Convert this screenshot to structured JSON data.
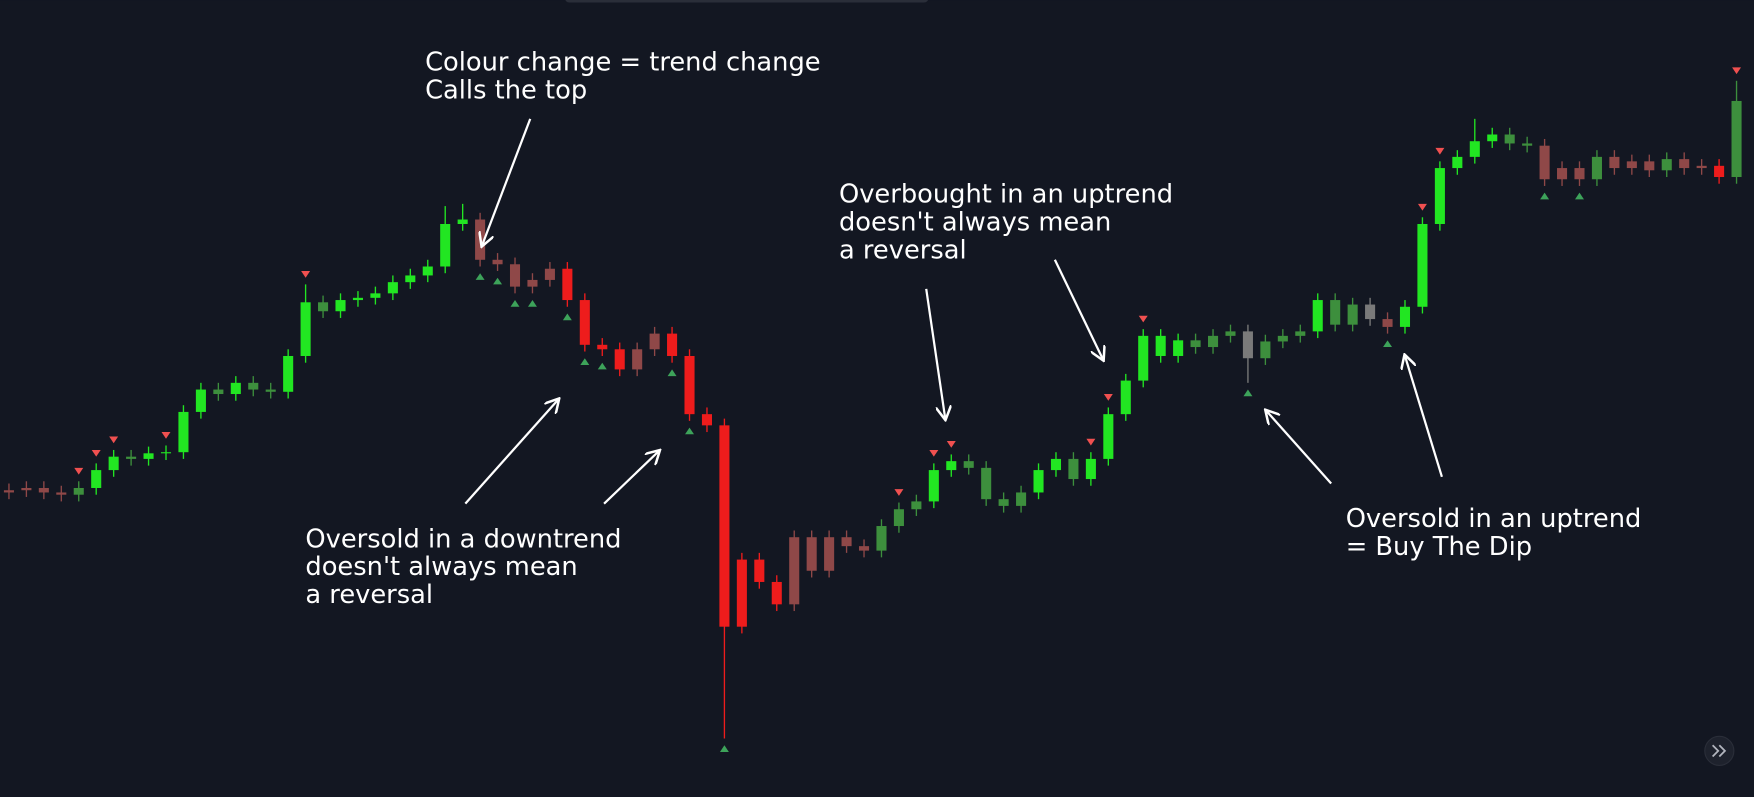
{
  "chart_data": {
    "type": "candlestick",
    "ylim": [
      0,
      712
    ],
    "open": [
      272,
      274,
      276,
      272,
      270,
      276,
      292,
      304,
      302,
      307,
      308,
      344,
      364,
      360,
      370,
      364,
      362,
      394,
      442,
      434,
      444,
      446,
      450,
      460,
      466,
      474,
      512,
      516,
      480,
      476,
      456,
      462,
      472,
      444,
      404,
      400,
      382,
      400,
      414,
      394,
      342,
      332,
      152,
      212,
      192,
      172,
      232,
      202,
      232,
      224,
      220,
      242,
      257,
      264,
      292,
      300,
      294,
      266,
      260,
      272,
      292,
      302,
      284,
      302,
      342,
      372,
      412,
      394,
      408,
      402,
      412,
      416,
      392,
      407,
      412,
      416,
      444,
      422,
      440,
      427,
      420,
      438,
      512,
      562,
      572,
      586,
      592,
      584,
      582,
      552,
      562,
      552,
      572,
      562,
      568,
      560,
      570,
      562,
      564,
      554
    ],
    "high": [
      280,
      282,
      282,
      278,
      282,
      298,
      310,
      310,
      313,
      314,
      350,
      370,
      370,
      376,
      376,
      370,
      400,
      458,
      448,
      450,
      452,
      456,
      466,
      472,
      480,
      528,
      530,
      522,
      486,
      482,
      468,
      478,
      478,
      450,
      410,
      406,
      406,
      420,
      420,
      400,
      348,
      338,
      218,
      218,
      198,
      238,
      238,
      238,
      238,
      230,
      248,
      263,
      270,
      298,
      306,
      306,
      300,
      272,
      278,
      298,
      308,
      308,
      308,
      348,
      378,
      418,
      418,
      414,
      414,
      418,
      422,
      422,
      413,
      418,
      422,
      450,
      450,
      446,
      446,
      433,
      444,
      518,
      568,
      578,
      606,
      598,
      598,
      590,
      588,
      568,
      568,
      578,
      578,
      574,
      574,
      576,
      576,
      570,
      570,
      640
    ],
    "low": [
      266,
      268,
      266,
      264,
      264,
      270,
      286,
      296,
      296,
      301,
      302,
      338,
      354,
      354,
      358,
      356,
      356,
      388,
      428,
      428,
      438,
      440,
      444,
      454,
      460,
      468,
      506,
      474,
      470,
      450,
      450,
      456,
      438,
      398,
      394,
      376,
      376,
      394,
      388,
      336,
      326,
      52,
      146,
      186,
      166,
      166,
      196,
      196,
      218,
      214,
      214,
      236,
      251,
      258,
      286,
      288,
      260,
      254,
      254,
      266,
      286,
      278,
      278,
      296,
      336,
      366,
      388,
      388,
      396,
      396,
      406,
      370,
      386,
      401,
      406,
      410,
      416,
      416,
      421,
      414,
      414,
      432,
      506,
      556,
      566,
      580,
      578,
      576,
      546,
      546,
      546,
      546,
      556,
      556,
      554,
      554,
      556,
      556,
      548,
      548
    ],
    "close": [
      274,
      276,
      272,
      270,
      276,
      292,
      304,
      302,
      307,
      308,
      344,
      364,
      360,
      370,
      364,
      362,
      394,
      442,
      434,
      444,
      446,
      450,
      460,
      466,
      474,
      512,
      516,
      480,
      476,
      456,
      462,
      472,
      444,
      404,
      400,
      382,
      400,
      414,
      394,
      342,
      332,
      152,
      212,
      192,
      172,
      232,
      202,
      232,
      224,
      220,
      242,
      257,
      264,
      292,
      300,
      294,
      266,
      260,
      272,
      292,
      302,
      284,
      302,
      342,
      372,
      412,
      394,
      408,
      402,
      412,
      416,
      392,
      407,
      412,
      416,
      444,
      422,
      440,
      427,
      420,
      438,
      512,
      562,
      572,
      586,
      592,
      584,
      582,
      552,
      562,
      552,
      572,
      562,
      568,
      560,
      570,
      562,
      564,
      554,
      622
    ],
    "colors": [
      "#8f4848",
      "#8f4848",
      "#8f4848",
      "#8f4848",
      "#3d8f3d",
      "#22e622",
      "#22e622",
      "#3d8f3d",
      "#22e622",
      "#22e622",
      "#22e622",
      "#22e622",
      "#3d8f3d",
      "#22e622",
      "#3d8f3d",
      "#3d8f3d",
      "#22e622",
      "#22e622",
      "#3d8f3d",
      "#22e622",
      "#22e622",
      "#22e622",
      "#22e622",
      "#22e622",
      "#22e622",
      "#22e622",
      "#22e622",
      "#8f4848",
      "#8f4848",
      "#8f4848",
      "#8f4848",
      "#8f4848",
      "#ee1c1c",
      "#ee1c1c",
      "#ee1c1c",
      "#ee1c1c",
      "#8f4848",
      "#8f4848",
      "#ee1c1c",
      "#ee1c1c",
      "#ee1c1c",
      "#ee1c1c",
      "#ee1c1c",
      "#ee1c1c",
      "#ee1c1c",
      "#8f4848",
      "#8f4848",
      "#8f4848",
      "#8f4848",
      "#8f4848",
      "#3d8f3d",
      "#3d8f3d",
      "#3d8f3d",
      "#22e622",
      "#22e622",
      "#3d8f3d",
      "#3d8f3d",
      "#3d8f3d",
      "#3d8f3d",
      "#22e622",
      "#22e622",
      "#3d8f3d",
      "#22e622",
      "#22e622",
      "#22e622",
      "#22e622",
      "#22e622",
      "#22e622",
      "#3d8f3d",
      "#3d8f3d",
      "#3d8f3d",
      "#7a7a7a",
      "#3d8f3d",
      "#3d8f3d",
      "#3d8f3d",
      "#22e622",
      "#3d8f3d",
      "#3d8f3d",
      "#7a7a7a",
      "#8f4848",
      "#22e622",
      "#22e622",
      "#22e622",
      "#22e622",
      "#22e622",
      "#22e622",
      "#3d8f3d",
      "#3d8f3d",
      "#8f4848",
      "#8f4848",
      "#8f4848",
      "#3d8f3d",
      "#8f4848",
      "#8f4848",
      "#8f4848",
      "#3d8f3d",
      "#8f4848",
      "#8f4848",
      "#ee1c1c",
      "#3d8f3d"
    ],
    "sell_signals": [
      4,
      5,
      6,
      9,
      17,
      51,
      53,
      54,
      62,
      63,
      65,
      81,
      82,
      99
    ],
    "sell_color": "#f05050",
    "buy_signals": [
      27,
      28,
      29,
      30,
      32,
      33,
      34,
      38,
      39,
      41,
      71,
      79,
      88,
      90
    ],
    "buy_color": "#3da35a",
    "annotations": [
      {
        "lines": [
          "Colour change = trend change",
          "Calls the top"
        ]
      },
      {
        "lines": [
          "Overbought in an uptrend",
          "doesn't always mean",
          "a reversal"
        ]
      },
      {
        "lines": [
          "Oversold in a downtrend",
          "doesn't always mean",
          "a reversal"
        ]
      },
      {
        "lines": [
          "Oversold in an uptrend",
          "= Buy The Dip"
        ]
      }
    ]
  }
}
